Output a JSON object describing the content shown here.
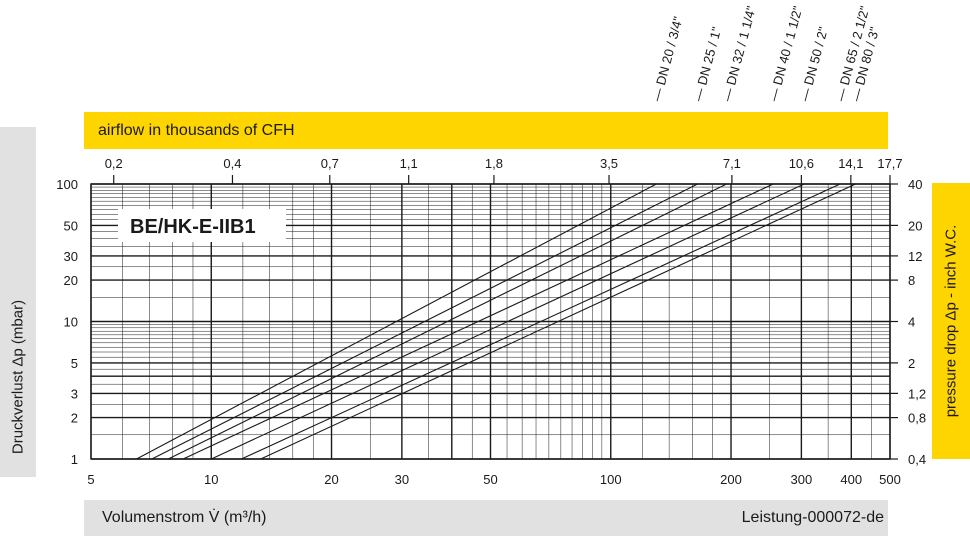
{
  "airflow_banner": "airflow in thousands of CFH",
  "y_label_left": "Druckverlust Δp (mbar)",
  "y_label_right": "pressure  drop Δp - inch W.C.",
  "x_label": "Volumenstrom V̇ (m³/h)",
  "doc_id": "Leistung-000072-de",
  "chart_label": "BE/HK-E-IIB1",
  "top_ticks": [
    {
      "label": "0,2",
      "x": 5.7
    },
    {
      "label": "0,4",
      "x": 11.3
    },
    {
      "label": "0,7",
      "x": 19.8
    },
    {
      "label": "1,1",
      "x": 31.2
    },
    {
      "label": "1,8",
      "x": 51
    },
    {
      "label": "3,5",
      "x": 99
    },
    {
      "label": "7,1",
      "x": 201
    },
    {
      "label": "10,6",
      "x": 300
    },
    {
      "label": "14,1",
      "x": 399
    },
    {
      "label": "17,7",
      "x": 500
    }
  ],
  "right_ticks": [
    {
      "label": "40",
      "y": 100
    },
    {
      "label": "20",
      "y": 50
    },
    {
      "label": "12",
      "y": 30
    },
    {
      "label": "8",
      "y": 20
    },
    {
      "label": "4",
      "y": 10
    },
    {
      "label": "2",
      "y": 5
    },
    {
      "label": "1,2",
      "y": 3
    },
    {
      "label": "0,8",
      "y": 2
    },
    {
      "label": "0,4",
      "y": 1
    }
  ],
  "colors": {
    "accent": "#ffd500",
    "panel": "#e1e1e1",
    "line": "#1a1a1a"
  },
  "chart_data": {
    "type": "line",
    "x_scale": "log",
    "y_scale": "log",
    "xlim": [
      5,
      500
    ],
    "ylim": [
      1,
      100
    ],
    "x_ticks": [
      "5",
      "10",
      "20",
      "30",
      "50",
      "100",
      "200",
      "300",
      "400",
      "500"
    ],
    "y_ticks": [
      "1",
      "2",
      "3",
      "5",
      "10",
      "20",
      "30",
      "50",
      "100"
    ],
    "grid": true,
    "series": [
      {
        "name": "DN 20 / 3/4\"",
        "x": [
          6.5,
          130
        ],
        "y": [
          1,
          100
        ]
      },
      {
        "name": "DN 25 / 1\"",
        "x": [
          7.1,
          165
        ],
        "y": [
          1,
          100
        ]
      },
      {
        "name": "DN 32 / 1 1/4\"",
        "x": [
          7.8,
          195
        ],
        "y": [
          1,
          100
        ]
      },
      {
        "name": "DN 40 / 1 1/2\"",
        "x": [
          8.5,
          255
        ],
        "y": [
          1,
          100
        ]
      },
      {
        "name": "DN 50 / 2\"",
        "x": [
          10,
          305
        ],
        "y": [
          1,
          100
        ]
      },
      {
        "name": "DN 65 / 2 1/2\"",
        "x": [
          11.9,
          375
        ],
        "y": [
          1,
          100
        ]
      },
      {
        "name": "DN 80 / 3\"",
        "x": [
          13.3,
          410
        ],
        "y": [
          1,
          100
        ]
      }
    ]
  }
}
